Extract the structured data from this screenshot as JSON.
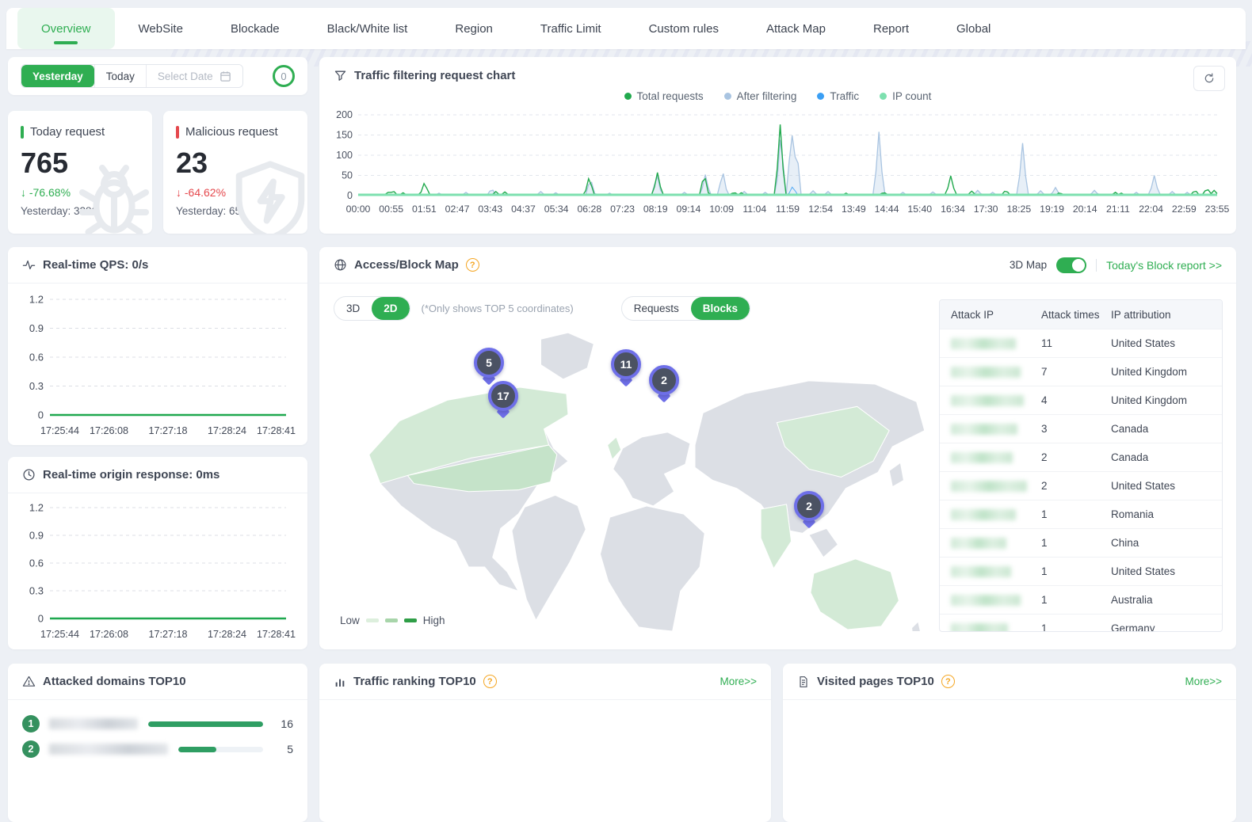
{
  "nav": {
    "tabs": [
      "Overview",
      "WebSite",
      "Blockade",
      "Black/White list",
      "Region",
      "Traffic Limit",
      "Custom rules",
      "Attack Map",
      "Report",
      "Global"
    ],
    "active": "Overview"
  },
  "date_filter": {
    "yesterday": "Yesterday",
    "today": "Today",
    "select_date": "Select Date",
    "counter": "0"
  },
  "stats": {
    "today_request": {
      "label": "Today request",
      "value": "765",
      "delta": "↓ -76.68%",
      "delta_color": "#2fae52",
      "yesterday": "Yesterday: 3280",
      "accent": "#2fae52"
    },
    "malicious_request": {
      "label": "Malicious request",
      "value": "23",
      "delta": "↓ -64.62%",
      "delta_color": "#e5484d",
      "yesterday": "Yesterday: 65",
      "accent": "#e5484d"
    }
  },
  "traffic_panel": {
    "title": "Traffic filtering request chart",
    "legend": [
      {
        "label": "Total requests",
        "color": "#21a94d"
      },
      {
        "label": "After filtering",
        "color": "#a9c4e1"
      },
      {
        "label": "Traffic",
        "color": "#3b9ff4"
      },
      {
        "label": "IP count",
        "color": "#7de0af"
      }
    ],
    "chart_data": {
      "type": "line",
      "ylim": [
        0,
        200
      ],
      "y_ticks": [
        0,
        50,
        100,
        150,
        200
      ],
      "x_ticks": [
        "00:00",
        "00:55",
        "01:51",
        "02:47",
        "03:43",
        "04:37",
        "05:34",
        "06:28",
        "07:23",
        "08:19",
        "09:14",
        "10:09",
        "11:04",
        "11:59",
        "12:54",
        "13:49",
        "14:44",
        "15:40",
        "16:34",
        "17:30",
        "18:25",
        "19:19",
        "20:14",
        "21:11",
        "22:04",
        "22:59",
        "23:55"
      ],
      "series": [
        {
          "name": "Total requests",
          "color": "#21a94d",
          "spikes": [
            [
              "00:50",
              8
            ],
            [
              "00:58",
              13
            ],
            [
              "01:15",
              7
            ],
            [
              "01:51",
              34
            ],
            [
              "03:50",
              10
            ],
            [
              "04:05",
              9
            ],
            [
              "06:26",
              48
            ],
            [
              "08:20",
              57
            ],
            [
              "09:38",
              56
            ],
            [
              "10:28",
              9
            ],
            [
              "10:40",
              7
            ],
            [
              "11:45",
              176
            ],
            [
              "13:35",
              6
            ],
            [
              "14:38",
              9
            ],
            [
              "16:30",
              49
            ],
            [
              "17:05",
              11
            ],
            [
              "18:02",
              14
            ],
            [
              "19:32",
              8
            ],
            [
              "21:05",
              8
            ],
            [
              "21:15",
              6
            ],
            [
              "23:18",
              14
            ],
            [
              "23:38",
              19
            ],
            [
              "23:50",
              13
            ]
          ]
        },
        {
          "name": "After filtering",
          "color": "#a9c4e1",
          "spikes": [
            [
              "02:15",
              6
            ],
            [
              "03:00",
              8
            ],
            [
              "03:43",
              18
            ],
            [
              "05:05",
              10
            ],
            [
              "05:30",
              7
            ],
            [
              "06:28",
              44
            ],
            [
              "07:00",
              6
            ],
            [
              "08:19",
              54
            ],
            [
              "09:05",
              8
            ],
            [
              "09:40",
              52
            ],
            [
              "10:09",
              62
            ],
            [
              "10:45",
              10
            ],
            [
              "11:20",
              8
            ],
            [
              "11:46",
              158
            ],
            [
              "12:04",
              170
            ],
            [
              "12:12",
              128
            ],
            [
              "12:40",
              12
            ],
            [
              "13:05",
              10
            ],
            [
              "14:30",
              158
            ],
            [
              "15:10",
              8
            ],
            [
              "16:00",
              9
            ],
            [
              "17:15",
              13
            ],
            [
              "17:40",
              8
            ],
            [
              "18:30",
              130
            ],
            [
              "19:00",
              12
            ],
            [
              "19:25",
              20
            ],
            [
              "20:30",
              13
            ],
            [
              "21:40",
              8
            ],
            [
              "22:10",
              50
            ],
            [
              "22:40",
              10
            ],
            [
              "23:05",
              8
            ]
          ]
        },
        {
          "name": "Traffic",
          "color": "#3b9ff4",
          "spikes": [
            [
              "12:06",
              24
            ]
          ]
        },
        {
          "name": "IP count",
          "color": "#7de0af",
          "baseline": 2
        }
      ]
    }
  },
  "qps_panel": {
    "title": "Real-time QPS: 0/s",
    "chart_data": {
      "type": "line",
      "y_ticks": [
        1.2,
        0.9,
        0.6,
        0.3,
        0
      ],
      "x_ticks": [
        "17:25:44",
        "17:26:08",
        "17:27:18",
        "17:28:24",
        "17:28:41"
      ],
      "series": [
        {
          "name": "QPS",
          "color": "#1fa84f",
          "values": [
            0,
            0,
            0,
            0,
            0
          ]
        }
      ]
    }
  },
  "origin_panel": {
    "title": "Real-time origin response: 0ms",
    "chart_data": {
      "type": "line",
      "y_ticks": [
        1.2,
        0.9,
        0.6,
        0.3,
        0
      ],
      "x_ticks": [
        "17:25:44",
        "17:26:08",
        "17:27:18",
        "17:28:24",
        "17:28:41"
      ],
      "series": [
        {
          "name": "origin response",
          "color": "#1fa84f",
          "values": [
            0,
            0,
            0,
            0,
            0
          ]
        }
      ]
    }
  },
  "map_panel": {
    "title": "Access/Block Map",
    "help": "?",
    "toggle_label": "3D Map",
    "report_link": "Today's Block report >>",
    "dim_options": [
      "3D",
      "2D"
    ],
    "dim_active": "2D",
    "note": "(*Only shows TOP 5 coordinates)",
    "view_options": [
      "Requests",
      "Blocks"
    ],
    "view_active": "Blocks",
    "legend": {
      "low": "Low",
      "high": "High",
      "colors": [
        "#ddefdd",
        "#a8d5aa",
        "#2f9e47"
      ]
    },
    "pins": [
      {
        "value": "5"
      },
      {
        "value": "17"
      },
      {
        "value": "11"
      },
      {
        "value": "2"
      },
      {
        "value": "2"
      }
    ]
  },
  "attack_table": {
    "columns": [
      "Attack IP",
      "Attack times",
      "IP attribution"
    ],
    "rows": [
      {
        "times": "11",
        "location": "United States"
      },
      {
        "times": "7",
        "location": "United Kingdom"
      },
      {
        "times": "4",
        "location": "United Kingdom"
      },
      {
        "times": "3",
        "location": "Canada"
      },
      {
        "times": "2",
        "location": "Canada"
      },
      {
        "times": "2",
        "location": "United States"
      },
      {
        "times": "1",
        "location": "Romania"
      },
      {
        "times": "1",
        "location": "China"
      },
      {
        "times": "1",
        "location": "United States"
      },
      {
        "times": "1",
        "location": "Australia"
      },
      {
        "times": "1",
        "location": "Germany"
      }
    ]
  },
  "attacked_domains": {
    "title": "Attacked domains TOP10",
    "rows": [
      {
        "rank": "1",
        "value": "16",
        "pct": 100
      },
      {
        "rank": "2",
        "value": "5",
        "pct": 31
      }
    ]
  },
  "traffic_ranking": {
    "title": "Traffic ranking TOP10",
    "more": "More>>"
  },
  "visited_pages": {
    "title": "Visited pages TOP10",
    "more": "More>>"
  }
}
